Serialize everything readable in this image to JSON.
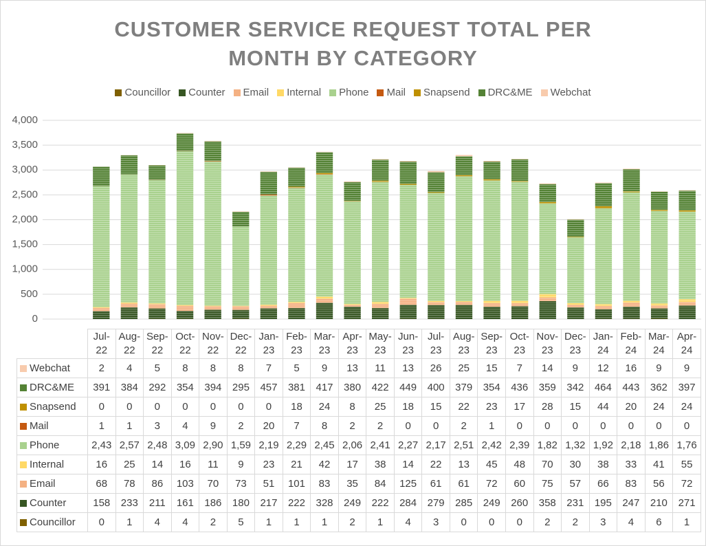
{
  "chart_data": {
    "type": "stacked_bar",
    "title": "CUSTOMER SERVICE REQUEST TOTAL PER MONTH BY CATEGORY",
    "categories": [
      "Jul-22",
      "Aug-22",
      "Sep-22",
      "Oct-22",
      "Nov-22",
      "Dec-22",
      "Jan-23",
      "Feb-23",
      "Mar-23",
      "Apr-23",
      "May-23",
      "Jun-23",
      "Jul-23",
      "Aug-23",
      "Sep-23",
      "Oct-23",
      "Nov-23",
      "Dec-23",
      "Jan-24",
      "Feb-24",
      "Mar-24",
      "Apr-24"
    ],
    "series": [
      {
        "name": "Councillor",
        "color": "#7f6000",
        "values": [
          0,
          1,
          4,
          4,
          2,
          5,
          1,
          1,
          1,
          2,
          1,
          4,
          3,
          0,
          0,
          0,
          2,
          2,
          3,
          4,
          6,
          1
        ]
      },
      {
        "name": "Counter",
        "color": "#375623",
        "values": [
          158,
          233,
          211,
          161,
          186,
          180,
          217,
          222,
          328,
          249,
          222,
          284,
          279,
          285,
          249,
          260,
          358,
          231,
          195,
          247,
          210,
          271
        ]
      },
      {
        "name": "Email",
        "color": "#f4b183",
        "values": [
          68,
          78,
          86,
          103,
          70,
          73,
          51,
          101,
          83,
          35,
          84,
          125,
          61,
          61,
          72,
          60,
          75,
          57,
          66,
          83,
          56,
          72
        ]
      },
      {
        "name": "Internal",
        "color": "#ffd966",
        "values": [
          16,
          25,
          14,
          16,
          11,
          9,
          23,
          21,
          42,
          17,
          38,
          14,
          22,
          13,
          45,
          48,
          70,
          30,
          38,
          33,
          41,
          55
        ]
      },
      {
        "name": "Phone",
        "color": "#a9d18e",
        "values": [
          2435,
          2575,
          2485,
          3095,
          2905,
          1595,
          2195,
          2295,
          2455,
          2065,
          2415,
          2275,
          2175,
          2515,
          2425,
          2395,
          1825,
          1325,
          1925,
          2185,
          1865,
          1765
        ],
        "value_labels": [
          "2,43",
          "2,57",
          "2,48",
          "3,09",
          "2,90",
          "1,59",
          "2,19",
          "2,29",
          "2,45",
          "2,06",
          "2,41",
          "2,27",
          "2,17",
          "2,51",
          "2,42",
          "2,39",
          "1,82",
          "1,32",
          "1,92",
          "2,18",
          "1,86",
          "1,76"
        ]
      },
      {
        "name": "Mail",
        "color": "#c55a11",
        "values": [
          1,
          1,
          3,
          4,
          9,
          2,
          20,
          7,
          8,
          2,
          2,
          0,
          0,
          2,
          1,
          0,
          0,
          0,
          0,
          0,
          0,
          0
        ]
      },
      {
        "name": "Snapsend",
        "color": "#bf9000",
        "values": [
          0,
          0,
          0,
          0,
          0,
          0,
          0,
          18,
          24,
          8,
          25,
          18,
          15,
          22,
          23,
          17,
          28,
          15,
          44,
          20,
          24,
          24
        ]
      },
      {
        "name": "DRC&ME",
        "color": "#548235",
        "values": [
          391,
          384,
          292,
          354,
          394,
          295,
          457,
          381,
          417,
          380,
          422,
          449,
          400,
          379,
          354,
          436,
          359,
          342,
          464,
          443,
          362,
          397
        ]
      },
      {
        "name": "Webchat",
        "color": "#f8cbad",
        "values": [
          2,
          4,
          5,
          8,
          8,
          8,
          7,
          5,
          9,
          13,
          11,
          13,
          26,
          25,
          15,
          7,
          14,
          9,
          12,
          16,
          9,
          9
        ]
      }
    ],
    "ylim": [
      0,
      4000
    ],
    "yticks": [
      0,
      500,
      {
        "value": 1000,
        "label": "1,000"
      },
      {
        "value": 1500,
        "label": "1,500"
      },
      {
        "value": 2000,
        "label": "2,000"
      },
      {
        "value": 2500,
        "label": "2,500"
      },
      {
        "value": 3000,
        "label": "3,000"
      },
      {
        "value": 3500,
        "label": "3,500"
      },
      {
        "value": 4000,
        "label": "4,000"
      }
    ],
    "grid": true
  }
}
